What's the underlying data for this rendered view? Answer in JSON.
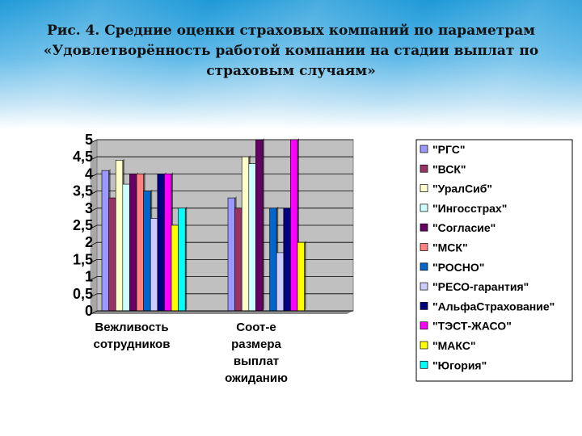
{
  "title": "Рис. 4. Средние оценки страховых компаний по параметрам\n«Удовлетворённость работой компании на стадии выплат по\nстраховым случаям»",
  "colors": {
    "plot_bg": "#c0c0c0",
    "header": "#1f9ad8"
  },
  "chart_data": {
    "type": "bar",
    "categories": [
      [
        "Вежливость",
        "сотрудников"
      ],
      [
        "Соот-е",
        "размера",
        "выплат",
        "ожиданию"
      ]
    ],
    "ylim": [
      0,
      5
    ],
    "yticks": [
      "0",
      "0,5",
      "1",
      "1,5",
      "2",
      "2,5",
      "3",
      "3,5",
      "4",
      "4,5",
      "5"
    ],
    "legend_position": "right",
    "grid": true,
    "series": [
      {
        "name": "\"РГС\"",
        "color": "#9999ff",
        "values": [
          4.1,
          3.3
        ]
      },
      {
        "name": "\"ВСК\"",
        "color": "#993366",
        "values": [
          3.3,
          3.0
        ]
      },
      {
        "name": "\"УралСиб\"",
        "color": "#ffffcc",
        "values": [
          4.4,
          4.5
        ]
      },
      {
        "name": "\"Ингосстрах\"",
        "color": "#ccffff",
        "values": [
          3.7,
          4.3
        ]
      },
      {
        "name": "\"Согласие\"",
        "color": "#660066",
        "values": [
          4.0,
          5.0
        ]
      },
      {
        "name": "\"МСК\"",
        "color": "#ff8080",
        "values": [
          4.0,
          null
        ]
      },
      {
        "name": "\"РОСНО\"",
        "color": "#0066cc",
        "values": [
          3.5,
          3.0
        ]
      },
      {
        "name": "\"РЕСО-гарантия\"",
        "color": "#ccccff",
        "values": [
          2.7,
          1.7
        ]
      },
      {
        "name": "\"АльфаСтрахование\"",
        "color": "#000080",
        "values": [
          4.0,
          3.0
        ]
      },
      {
        "name": "\"ТЭСТ-ЖАСО\"",
        "color": "#ff00ff",
        "values": [
          4.0,
          5.0
        ]
      },
      {
        "name": "\"МАКС\"",
        "color": "#ffff00",
        "values": [
          2.5,
          2.0
        ]
      },
      {
        "name": "\"Югория\"",
        "color": "#00ffff",
        "values": [
          3.0,
          null
        ]
      }
    ]
  }
}
